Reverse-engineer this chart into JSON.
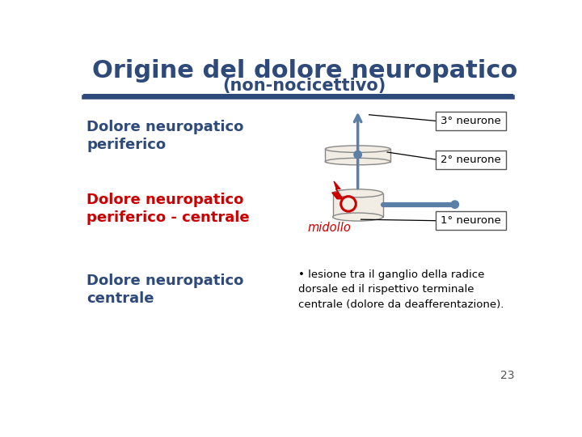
{
  "title_line1": "Origine del dolore neuropatico",
  "title_line2": "(non-nocicettivo)",
  "title_color": "#2E4A7A",
  "bg_color": "#FFFFFF",
  "label1": "Dolore neuropatico\nperiferico",
  "label1_color": "#2E4A7A",
  "label2": "Dolore neuropatico\nperiferico - centrale",
  "label2_color": "#CC0000",
  "label3": "Dolore neuropatico\ncentrale",
  "label3_color": "#2E4A7A",
  "label_neurone3": "3° neurone",
  "label_neurone2": "2° neurone",
  "label_neurone1": "1° neurone",
  "label_midollo": "midollo",
  "body_text": "• lesione tra il ganglio della radice\ndorsale ed il rispettivo terminale\ncentrale (dolore da deafferentazione).",
  "separator_color": "#2E4A7A",
  "page_number": "23",
  "diagram_blue": "#5B7FA6",
  "diagram_red": "#CC0000",
  "diagram_beige": "#F2EDE4",
  "neurone_box_edge": "#555555"
}
